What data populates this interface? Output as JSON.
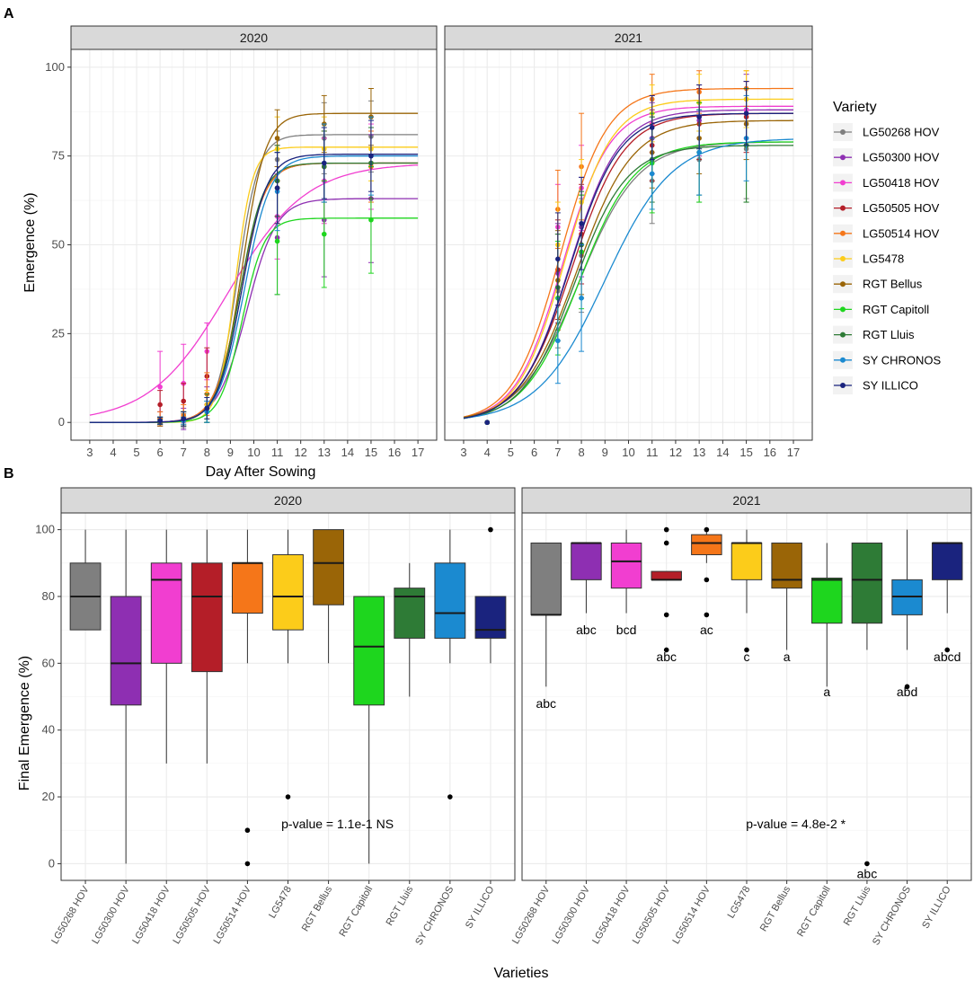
{
  "figure": {
    "panel_a_label": "A",
    "panel_b_label": "B"
  },
  "legend": {
    "title": "Variety",
    "entries": [
      {
        "name": "LG50268 HOV",
        "color": "#7f7f7f"
      },
      {
        "name": "LG50300 HOV",
        "color": "#8e2fb2"
      },
      {
        "name": "LG50418 HOV",
        "color": "#f13ed0"
      },
      {
        "name": "LG50505 HOV",
        "color": "#b41e28"
      },
      {
        "name": "LG50514 HOV",
        "color": "#f57619"
      },
      {
        "name": "LG5478",
        "color": "#fccc1a"
      },
      {
        "name": "RGT Bellus",
        "color": "#9a6507"
      },
      {
        "name": "RGT Capitoll",
        "color": "#1ed61e"
      },
      {
        "name": "RGT Lluis",
        "color": "#2e7b36"
      },
      {
        "name": "SY CHRONOS",
        "color": "#1b8ad0"
      },
      {
        "name": "SY ILLICO",
        "color": "#1a237e"
      }
    ]
  },
  "chart_data": [
    {
      "type": "line",
      "panel": "A",
      "facets": [
        "2020",
        "2021"
      ],
      "xlabel": "Day After Sowing",
      "ylabel": "Emergence (%)",
      "xlim": [
        2.2,
        17.8
      ],
      "ylim": [
        -5,
        105
      ],
      "xticks": [
        3,
        4,
        5,
        6,
        7,
        8,
        9,
        10,
        11,
        12,
        13,
        14,
        15,
        16,
        17
      ],
      "yticks": [
        0,
        25,
        50,
        75,
        100
      ],
      "grid": true,
      "observation_days": {
        "2020": [
          6,
          7,
          8,
          11,
          13,
          15
        ],
        "2021": [
          4,
          7,
          8,
          11,
          13,
          15
        ]
      },
      "series": [
        {
          "name": "LG50268 HOV",
          "2020": {
            "asymptote": 81,
            "midpoint": 9.3,
            "rate": 2.2,
            "points": [
              0,
              0.5,
              3,
              74,
              80,
              80.5
            ],
            "err": [
              1,
              2,
              3,
              8,
              10,
              10
            ]
          },
          "2021": {
            "asymptote": 79,
            "midpoint": 7.9,
            "rate": 0.8,
            "points": [
              0,
              37,
              47,
              68,
              74,
              77
            ],
            "err": [
              0,
              16,
              16,
              12,
              12,
              14
            ]
          }
        },
        {
          "name": "LG50300 HOV",
          "2020": {
            "asymptote": 63,
            "midpoint": 9.7,
            "rate": 1.6,
            "points": [
              1,
              1,
              5,
              52,
              57,
              63
            ],
            "err": [
              2,
              3,
              5,
              16,
              16,
              18
            ]
          },
          "2021": {
            "asymptote": 88,
            "midpoint": 7.5,
            "rate": 0.95,
            "points": [
              0,
              42,
              55,
              80,
              85,
              88
            ],
            "err": [
              0,
              14,
              14,
              10,
              10,
              10
            ]
          }
        },
        {
          "name": "LG50418 HOV",
          "2020": {
            "asymptote": 73,
            "midpoint": 8.9,
            "rate": 0.6,
            "points": [
              10,
              11,
              20,
              58,
              68,
              72
            ],
            "err": [
              10,
              11,
              8,
              12,
              12,
              12
            ]
          },
          "2021": {
            "asymptote": 89,
            "midpoint": 7.2,
            "rate": 1.0,
            "points": [
              0,
              55,
              66,
              84,
              86,
              88
            ],
            "err": [
              0,
              12,
              12,
              8,
              8,
              8
            ]
          }
        },
        {
          "name": "LG50505 HOV",
          "2020": {
            "asymptote": 73,
            "midpoint": 9.4,
            "rate": 1.9,
            "points": [
              5,
              6,
              13,
              68,
              72,
              73
            ],
            "err": [
              4,
              5,
              8,
              10,
              10,
              10
            ]
          },
          "2021": {
            "asymptote": 87,
            "midpoint": 7.6,
            "rate": 0.9,
            "points": [
              0,
              43,
              53,
              78,
              84,
              86
            ],
            "err": [
              0,
              14,
              14,
              10,
              10,
              10
            ]
          }
        },
        {
          "name": "LG50514 HOV",
          "2020": {
            "asymptote": 73,
            "midpoint": 9.4,
            "rate": 1.9,
            "points": [
              1,
              2,
              8,
              66,
              72,
              72
            ],
            "err": [
              2,
              3,
              6,
              10,
              10,
              10
            ]
          },
          "2021": {
            "asymptote": 94,
            "midpoint": 7.1,
            "rate": 1.0,
            "points": [
              0,
              60,
              72,
              91,
              93,
              94
            ],
            "err": [
              0,
              11,
              15,
              7,
              6,
              5
            ]
          }
        },
        {
          "name": "LG5478",
          "2020": {
            "asymptote": 77.5,
            "midpoint": 9.2,
            "rate": 2.7,
            "points": [
              0.5,
              1,
              5,
              77,
              77,
              77
            ],
            "err": [
              1,
              2,
              4,
              9,
              9,
              9
            ]
          },
          "2021": {
            "asymptote": 91,
            "midpoint": 7.3,
            "rate": 1.0,
            "points": [
              0,
              50,
              62,
              87,
              90,
              91
            ],
            "err": [
              0,
              12,
              12,
              8,
              8,
              8
            ]
          }
        },
        {
          "name": "RGT Bellus",
          "2020": {
            "asymptote": 87,
            "midpoint": 9.5,
            "rate": 2.0,
            "points": [
              0,
              0.5,
              3,
              80,
              84,
              86
            ],
            "err": [
              1,
              1,
              3,
              8,
              8,
              8
            ]
          },
          "2021": {
            "asymptote": 85,
            "midpoint": 7.8,
            "rate": 0.85,
            "points": [
              0,
              40,
              50,
              76,
              80,
              84
            ],
            "err": [
              0,
              14,
              14,
              10,
              10,
              10
            ]
          }
        },
        {
          "name": "RGT Capitoll",
          "2020": {
            "asymptote": 57.5,
            "midpoint": 9.5,
            "rate": 2.1,
            "points": [
              0.5,
              1,
              3,
              51,
              53,
              57
            ],
            "err": [
              1,
              2,
              3,
              15,
              15,
              15
            ]
          },
          "2021": {
            "asymptote": 79,
            "midpoint": 7.9,
            "rate": 0.85,
            "points": [
              0,
              35,
              48,
              73,
              76,
              78
            ],
            "err": [
              0,
              16,
              16,
              14,
              14,
              16
            ]
          }
        },
        {
          "name": "RGT Lluis",
          "2020": {
            "asymptote": 73,
            "midpoint": 9.4,
            "rate": 2.0,
            "points": [
              0.5,
              1,
              4,
              68,
              72,
              73
            ],
            "err": [
              1,
              2,
              4,
              10,
              10,
              10
            ]
          },
          "2021": {
            "asymptote": 78,
            "midpoint": 7.7,
            "rate": 0.9,
            "points": [
              0,
              38,
              50,
              74,
              76,
              78
            ],
            "err": [
              0,
              15,
              15,
              12,
              12,
              16
            ]
          }
        },
        {
          "name": "SY CHRONOS",
          "2020": {
            "asymptote": 75,
            "midpoint": 9.6,
            "rate": 1.8,
            "points": [
              0.5,
              0.5,
              3,
              65,
              73,
              75
            ],
            "err": [
              1,
              1,
              3,
              11,
              11,
              11
            ]
          },
          "2021": {
            "asymptote": 80,
            "midpoint": 9.0,
            "rate": 0.7,
            "points": [
              0,
              23,
              35,
              70,
              76,
              80
            ],
            "err": [
              0,
              12,
              15,
              10,
              12,
              12
            ]
          }
        },
        {
          "name": "SY ILLICO",
          "2020": {
            "asymptote": 75.5,
            "midpoint": 9.5,
            "rate": 1.9,
            "points": [
              0.5,
              1,
              4,
              66,
              73,
              75
            ],
            "err": [
              1,
              2,
              3,
              10,
              10,
              10
            ]
          },
          "2021": {
            "asymptote": 87,
            "midpoint": 7.5,
            "rate": 0.95,
            "points": [
              0,
              46,
              56,
              83,
              86,
              87
            ],
            "err": [
              0,
              13,
              13,
              9,
              9,
              9
            ]
          }
        }
      ]
    },
    {
      "type": "box",
      "panel": "B",
      "facets": [
        "2020",
        "2021"
      ],
      "xlabel": "Varieties",
      "ylabel": "Final Emergence (%)",
      "ylim": [
        -5,
        105
      ],
      "yticks": [
        0,
        20,
        40,
        60,
        80,
        100
      ],
      "grid": true,
      "categories": [
        "LG50268 HOV",
        "LG50300 HOV",
        "LG50418 HOV",
        "LG50505 HOV",
        "LG50514 HOV",
        "LG5478",
        "RGT Bellus",
        "RGT Capitoll",
        "RGT Lluis",
        "SY CHRONOS",
        "SY ILLICO"
      ],
      "pvalue": {
        "2020": "p-value =  1.1e-1 NS",
        "2021": "p-value =  4.8e-2 *"
      },
      "pvalue_position": {
        "2020": [
          6.5,
          12
        ],
        "2021": [
          6.5,
          12
        ]
      },
      "boxes": {
        "2020": [
          {
            "q1": 70,
            "median": 80,
            "q3": 90,
            "wlo": 70,
            "whi": 100,
            "outliers": []
          },
          {
            "q1": 47.5,
            "median": 60,
            "q3": 80,
            "wlo": 0,
            "whi": 100,
            "outliers": []
          },
          {
            "q1": 60,
            "median": 85,
            "q3": 90,
            "wlo": 30,
            "whi": 100,
            "outliers": []
          },
          {
            "q1": 57.5,
            "median": 80,
            "q3": 90,
            "wlo": 30,
            "whi": 100,
            "outliers": []
          },
          {
            "q1": 75,
            "median": 90,
            "q3": 90,
            "wlo": 60,
            "whi": 100,
            "outliers": [
              10,
              0
            ]
          },
          {
            "q1": 70,
            "median": 80,
            "q3": 92.5,
            "wlo": 60,
            "whi": 100,
            "outliers": [
              20
            ]
          },
          {
            "q1": 77.5,
            "median": 90,
            "q3": 100,
            "wlo": 60,
            "whi": 100,
            "outliers": []
          },
          {
            "q1": 47.5,
            "median": 65,
            "q3": 80,
            "wlo": 0,
            "whi": 80,
            "outliers": []
          },
          {
            "q1": 67.5,
            "median": 80,
            "q3": 82.5,
            "wlo": 50,
            "whi": 90,
            "outliers": []
          },
          {
            "q1": 67.5,
            "median": 75,
            "q3": 90,
            "wlo": 60,
            "whi": 100,
            "outliers": [
              20
            ]
          },
          {
            "q1": 67.5,
            "median": 70,
            "q3": 80,
            "wlo": 60,
            "whi": 80,
            "outliers": [
              100
            ]
          }
        ],
        "2021": [
          {
            "q1": 74.5,
            "median": 74.5,
            "q3": 96,
            "wlo": 53,
            "whi": 96,
            "outliers": []
          },
          {
            "q1": 85,
            "median": 96,
            "q3": 96,
            "wlo": 75,
            "whi": 96,
            "outliers": []
          },
          {
            "q1": 82.5,
            "median": 90.5,
            "q3": 96,
            "wlo": 75,
            "whi": 100,
            "outliers": []
          },
          {
            "q1": 85,
            "median": 85,
            "q3": 87.5,
            "wlo": 85,
            "whi": 87.5,
            "outliers": [
              100,
              96,
              74.5,
              64
            ]
          },
          {
            "q1": 92.5,
            "median": 96,
            "q3": 98.5,
            "wlo": 90,
            "whi": 100,
            "outliers": [
              100,
              85,
              74.5
            ]
          },
          {
            "q1": 85,
            "median": 96,
            "q3": 96,
            "wlo": 75,
            "whi": 100,
            "outliers": [
              64
            ]
          },
          {
            "q1": 82.5,
            "median": 85,
            "q3": 96,
            "wlo": 64,
            "whi": 96,
            "outliers": []
          },
          {
            "q1": 72,
            "median": 85,
            "q3": 85.5,
            "wlo": 53,
            "whi": 96,
            "outliers": []
          },
          {
            "q1": 72,
            "median": 85,
            "q3": 96,
            "wlo": 64,
            "whi": 96,
            "outliers": [
              0
            ]
          },
          {
            "q1": 74.5,
            "median": 80,
            "q3": 85,
            "wlo": 64,
            "whi": 100,
            "outliers": [
              53
            ]
          },
          {
            "q1": 85,
            "median": 96,
            "q3": 96,
            "wlo": 75,
            "whi": 96,
            "outliers": [
              64
            ]
          }
        ]
      },
      "group_letters_2021": [
        {
          "label": "abc",
          "y": 48
        },
        {
          "label": "abc",
          "y": 70
        },
        {
          "label": "bcd",
          "y": 70
        },
        {
          "label": "abc",
          "y": 62
        },
        {
          "label": "ac",
          "y": 70
        },
        {
          "label": "c",
          "y": 62
        },
        {
          "label": "a",
          "y": 62
        },
        {
          "label": "a",
          "y": 51.5
        },
        {
          "label": "abc",
          "y": -3
        },
        {
          "label": "abd",
          "y": 51.5
        },
        {
          "label": "abcd",
          "y": 62
        }
      ]
    }
  ]
}
